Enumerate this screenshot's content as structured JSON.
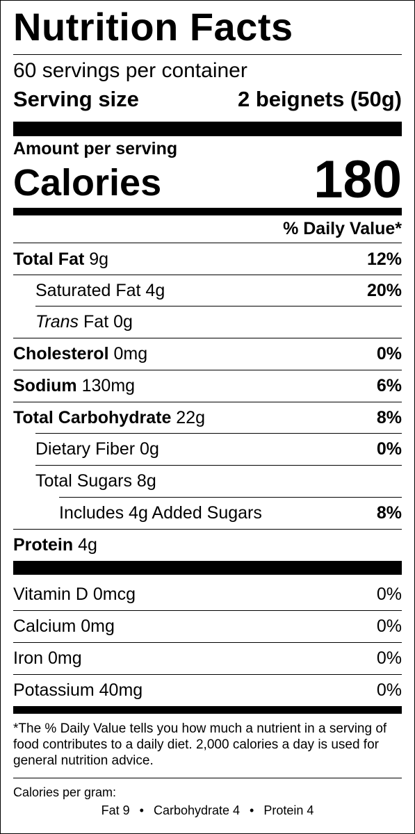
{
  "label": {
    "title": "Nutrition Facts",
    "servings": "60 servings per container",
    "serving_size_label": "Serving size",
    "serving_size_value": "2 beignets (50g)",
    "amount_per_serving": "Amount per serving",
    "calories_label": "Calories",
    "calories_value": "180",
    "dv_header": "% Daily Value*"
  },
  "nutrients": {
    "total_fat": {
      "name": "Total Fat",
      "amount": "9g",
      "dv": "12%"
    },
    "saturated_fat": {
      "name": "Saturated Fat 4g",
      "dv": "20%"
    },
    "trans_fat": {
      "name_italic": "Trans",
      "name_rest": "Fat 0g"
    },
    "cholesterol": {
      "name": "Cholesterol",
      "amount": "0mg",
      "dv": "0%"
    },
    "sodium": {
      "name": "Sodium",
      "amount": "130mg",
      "dv": "6%"
    },
    "total_carbohydrate": {
      "name": "Total Carbohydrate",
      "amount": "22g",
      "dv": "8%"
    },
    "dietary_fiber": {
      "name": "Dietary Fiber 0g",
      "dv": "0%"
    },
    "total_sugars": {
      "name": "Total Sugars 8g"
    },
    "added_sugars": {
      "name": "Includes 4g Added Sugars",
      "dv": "8%"
    },
    "protein": {
      "name": "Protein",
      "amount": "4g"
    }
  },
  "vitamins": {
    "vitamin_d": {
      "name": "Vitamin D 0mcg",
      "dv": "0%"
    },
    "calcium": {
      "name": "Calcium 0mg",
      "dv": "0%"
    },
    "iron": {
      "name": "Iron 0mg",
      "dv": "0%"
    },
    "potassium": {
      "name": "Potassium 40mg",
      "dv": "0%"
    }
  },
  "footnote": "*The % Daily Value tells you how much a nutrient in a serving of food contributes to a daily diet. 2,000 calories a day is used for general nutrition advice.",
  "calories_per_gram": {
    "title": "Calories per gram:",
    "fat": "Fat 9",
    "carbohydrate": "Carbohydrate 4",
    "protein": "Protein 4",
    "separator": "•"
  }
}
